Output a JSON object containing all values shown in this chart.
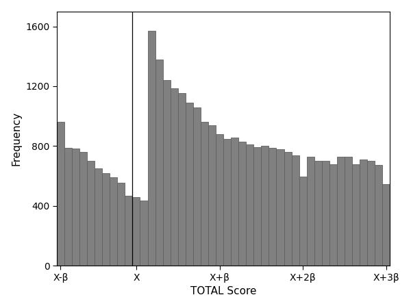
{
  "bar_color": "#808080",
  "bar_edgecolor": "#606060",
  "background_color": "#ffffff",
  "plot_bg_color": "#ffffff",
  "xlabel": "TOTAL Score",
  "ylabel": "Frequency",
  "ylim": [
    0,
    1700
  ],
  "yticks": [
    0,
    400,
    800,
    1200,
    1600
  ],
  "xtick_labels": [
    "X-β",
    "X",
    "X+β",
    "X+2β",
    "X+3β"
  ],
  "vline_index": 10,
  "bar_heights": [
    960,
    790,
    785,
    760,
    700,
    650,
    620,
    590,
    555,
    470,
    460,
    435,
    1570,
    1380,
    1240,
    1185,
    1155,
    1090,
    1060,
    960,
    940,
    880,
    850,
    855,
    830,
    810,
    795,
    800,
    790,
    780,
    760,
    740,
    595,
    730,
    700,
    700,
    680,
    730,
    730,
    680,
    710,
    700,
    675,
    545
  ],
  "xtick_positions": [
    0,
    10,
    21,
    32,
    43
  ],
  "figsize": [
    6.0,
    4.5
  ],
  "dpi": 100,
  "linewidth": 0.6,
  "tick_fontsize": 10,
  "label_fontsize": 11
}
